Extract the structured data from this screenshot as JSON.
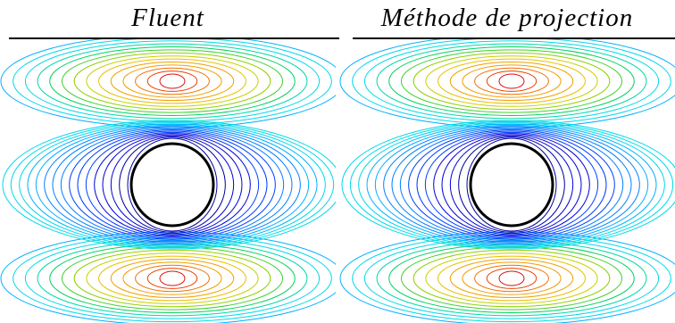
{
  "panels": [
    {
      "title": "Fluent"
    },
    {
      "title": "Méthode de projection"
    }
  ],
  "colors": {
    "contours": [
      "#0000a0",
      "#0000d8",
      "#0040ff",
      "#0080ff",
      "#00b0ff",
      "#00d8e8",
      "#00d8a8",
      "#00d060",
      "#40d030",
      "#90d000",
      "#c8d000",
      "#e8c000",
      "#f0a000",
      "#f07000",
      "#e84000",
      "#d81010"
    ],
    "obstacle_outline": "#000000",
    "obstacle_fill": "#ffffff"
  }
}
